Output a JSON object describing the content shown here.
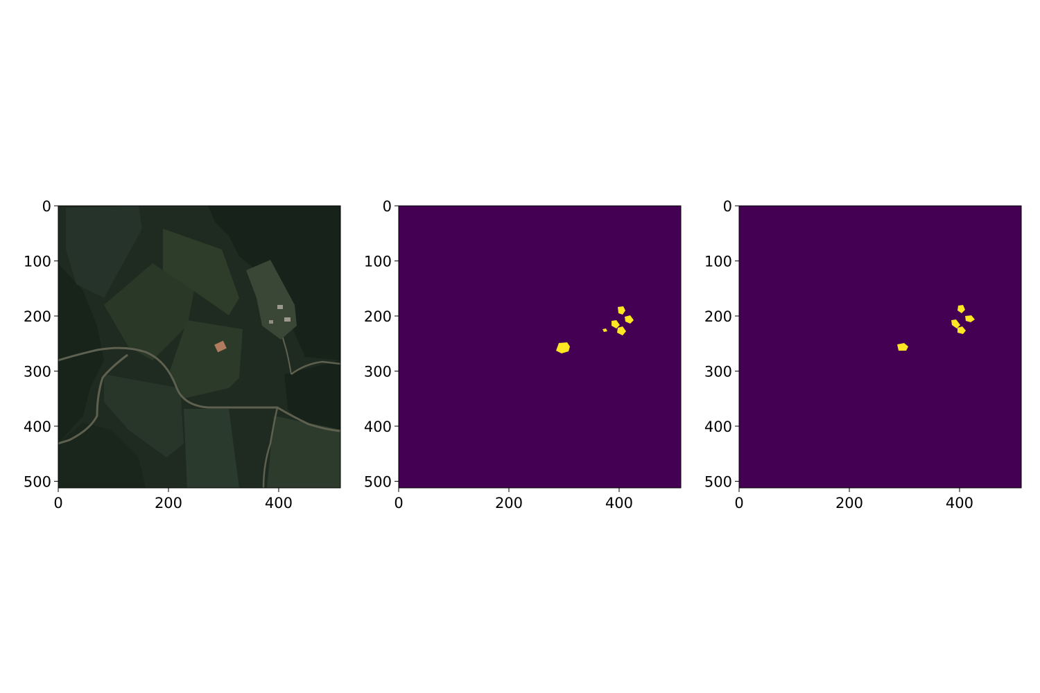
{
  "figure": {
    "panels": [
      {
        "name": "satellite-image",
        "kind": "rgb-image",
        "xticks": [
          "0",
          "200",
          "400"
        ],
        "yticks": [
          "0",
          "100",
          "200",
          "300",
          "400",
          "500"
        ]
      },
      {
        "name": "mask-ground-truth",
        "kind": "mask",
        "xticks": [
          "0",
          "200",
          "400"
        ],
        "yticks": [
          "0",
          "100",
          "200",
          "300",
          "400",
          "500"
        ]
      },
      {
        "name": "mask-prediction",
        "kind": "mask",
        "xticks": [
          "0",
          "200",
          "400"
        ],
        "yticks": [
          "0",
          "100",
          "200",
          "300",
          "400",
          "500"
        ]
      }
    ],
    "colors": {
      "mask_background": "#440154",
      "mask_foreground": "#fde725",
      "image_base": "#1e2a1e",
      "field": "#2b3a26",
      "forest": "#18241a",
      "road": "#6b6a55",
      "house_roof": "#b07b5e"
    }
  }
}
